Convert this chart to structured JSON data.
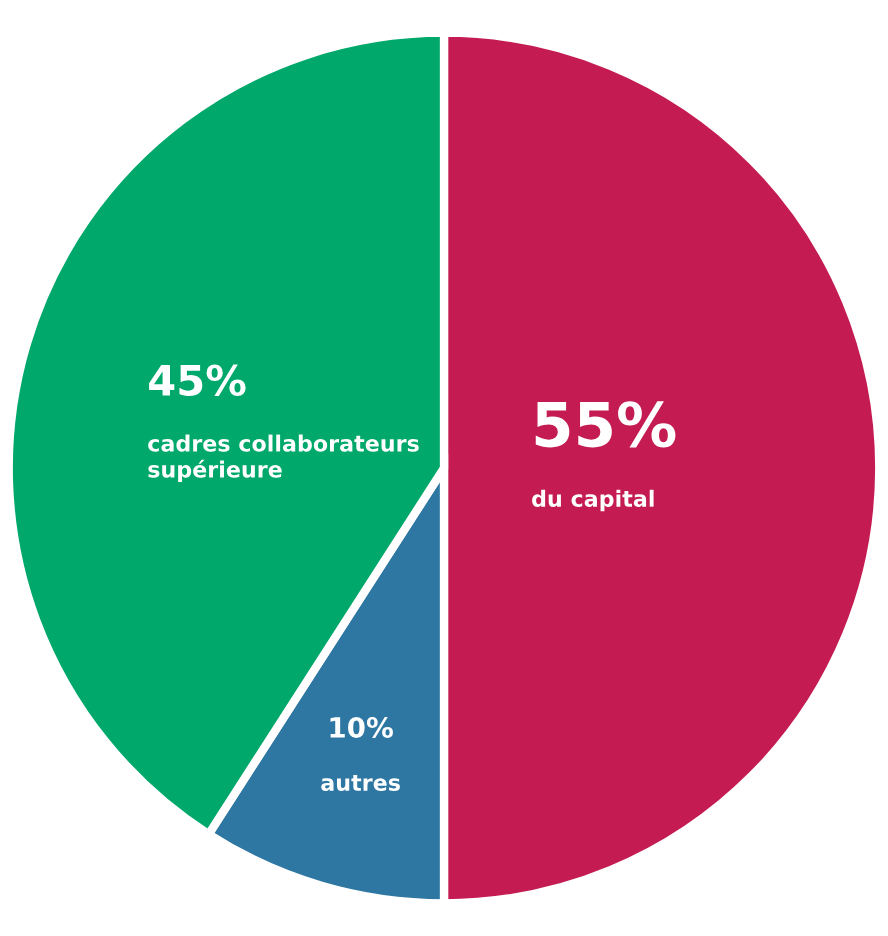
{
  "chart_data": {
    "type": "pie",
    "categories": [
      "du capital",
      "autres",
      "cadres collaborateurs\nsupérieure"
    ],
    "values": [
      55,
      10,
      45
    ],
    "value_labels": [
      "55%",
      "10%",
      "45%"
    ],
    "colors": [
      "#c41c52",
      "#2e77a3",
      "#00a86b"
    ]
  }
}
